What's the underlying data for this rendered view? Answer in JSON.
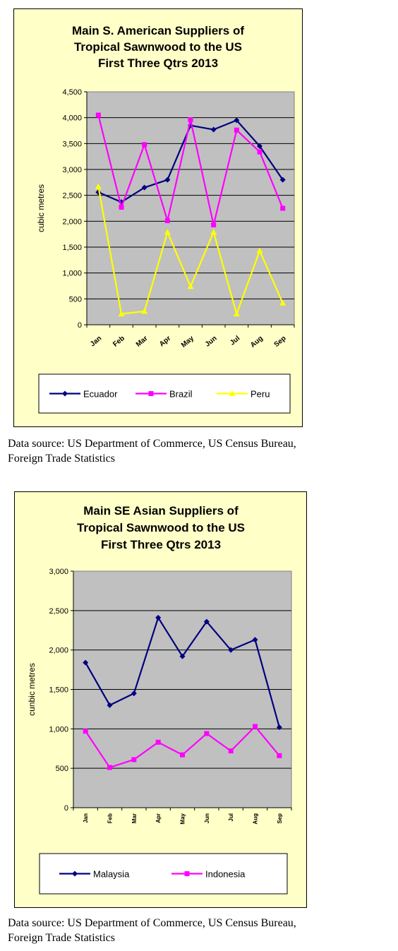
{
  "chart_data": [
    {
      "type": "line",
      "title_lines": [
        "Main S. American Suppliers of",
        "Tropical Sawnwood to the US",
        "First Three Qtrs 2013"
      ],
      "ylabel": "cubic metres",
      "ylim": [
        0,
        4500
      ],
      "yticks": [
        "0",
        "500",
        "1,000",
        "1,500",
        "2,000",
        "2,500",
        "3,000",
        "3,500",
        "4,000",
        "4,500"
      ],
      "categories": [
        "Jan",
        "Feb",
        "Mar",
        "Apr",
        "May",
        "Jun",
        "Jul",
        "Aug",
        "Sep"
      ],
      "grid": true,
      "legend_position": "bottom",
      "series": [
        {
          "name": "Ecuador",
          "color": "#000080",
          "marker": "diamond",
          "values": [
            2560,
            2370,
            2650,
            2800,
            3850,
            3770,
            3950,
            3450,
            2800
          ]
        },
        {
          "name": "Brazil",
          "color": "#ff00ff",
          "marker": "square",
          "values": [
            4050,
            2270,
            3480,
            2010,
            3960,
            1930,
            3760,
            3340,
            2250
          ]
        },
        {
          "name": "Peru",
          "color": "#ffff00",
          "marker": "triangle",
          "values": [
            2670,
            210,
            260,
            1790,
            740,
            1790,
            210,
            1430,
            420
          ]
        }
      ]
    },
    {
      "type": "line",
      "title_lines": [
        "Main SE Asian Suppliers of",
        "Tropical Sawnwood to the US",
        "First Three Qtrs 2013"
      ],
      "ylabel": "cunbic metres",
      "ylim": [
        0,
        3000
      ],
      "yticks": [
        "0",
        "500",
        "1,000",
        "1,500",
        "2,000",
        "2,500",
        "3,000"
      ],
      "categories": [
        "Jan",
        "Feb",
        "Mar",
        "Apr",
        "May",
        "Jun",
        "Jul",
        "Aug",
        "Sep"
      ],
      "grid": true,
      "legend_position": "bottom",
      "series": [
        {
          "name": "Malaysia",
          "color": "#000080",
          "marker": "diamond",
          "values": [
            1840,
            1300,
            1450,
            2410,
            1920,
            2360,
            2000,
            2130,
            1020
          ]
        },
        {
          "name": "Indonesia",
          "color": "#ff00ff",
          "marker": "square",
          "values": [
            970,
            510,
            610,
            830,
            670,
            940,
            720,
            1030,
            660
          ]
        }
      ]
    }
  ],
  "sources": [
    {
      "line1": "Data source: US Department of Commerce, US Census Bureau,",
      "line2": "Foreign Trade Statistics"
    },
    {
      "line1": "Data source: US Department of Commerce, US Census Bureau,",
      "line2": "Foreign Trade Statistics"
    }
  ]
}
